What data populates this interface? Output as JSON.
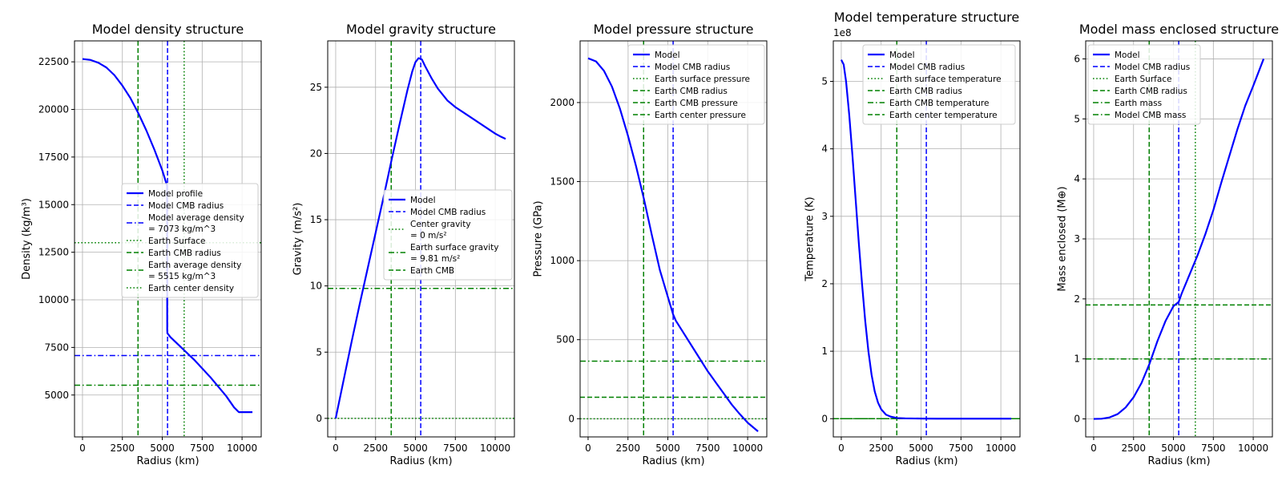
{
  "chart_data": [
    {
      "type": "line",
      "title": "Model density structure",
      "xlabel": "Radius (km)",
      "ylabel": "Density (kg/m³)",
      "xlim": [
        -500,
        11200
      ],
      "ylim": [
        2800,
        23600
      ],
      "xticks": [
        0,
        2500,
        5000,
        7500,
        10000
      ],
      "xtick_labels": [
        "0",
        "2500",
        "5000",
        "7500",
        "10000"
      ],
      "yticks": [
        5000,
        7500,
        10000,
        12500,
        15000,
        17500,
        20000,
        22500
      ],
      "ytick_labels": [
        "5000",
        "7500",
        "10000",
        "12500",
        "15000",
        "17500",
        "20000",
        "22500"
      ],
      "series": [
        {
          "name": "Model profile",
          "color": "#0000ff",
          "style": "solid",
          "x": [
            0,
            500,
            1000,
            1500,
            2000,
            2500,
            3000,
            3500,
            4000,
            4500,
            5000,
            5300,
            5310,
            5320,
            5500,
            6000,
            6500,
            7000,
            7500,
            8000,
            8500,
            9000,
            9500,
            9800,
            10000,
            10500,
            10650
          ],
          "y": [
            22650,
            22600,
            22450,
            22200,
            21800,
            21250,
            20600,
            19800,
            18900,
            17900,
            16800,
            16000,
            8400,
            8250,
            8050,
            7650,
            7250,
            6850,
            6400,
            5950,
            5450,
            4950,
            4350,
            4100,
            4100,
            4100,
            4100
          ]
        }
      ],
      "vlines": [
        {
          "name": "Model CMB radius",
          "x": 5330,
          "color": "#0000ff",
          "style": "dashed"
        },
        {
          "name": "Earth Surface",
          "x": 6371,
          "color": "#008000",
          "style": "dotted"
        },
        {
          "name": "Earth CMB radius",
          "x": 3480,
          "color": "#008000",
          "style": "dashed"
        }
      ],
      "hlines": [
        {
          "name": "Model average density = 7073 kg/m^3",
          "y": 7073,
          "color": "#0000ff",
          "style": "dashdot"
        },
        {
          "name": "Earth average density = 5515 kg/m^3",
          "y": 5515,
          "color": "#008000",
          "style": "dashdot"
        },
        {
          "name": "Earth center density",
          "y": 13000,
          "color": "#008000",
          "style": "dotted"
        }
      ],
      "legend": {
        "position": "center-right",
        "entries": [
          {
            "lines": [
              "Model profile"
            ],
            "color": "#0000ff",
            "style": "solid"
          },
          {
            "lines": [
              "Model CMB radius"
            ],
            "color": "#0000ff",
            "style": "dashed"
          },
          {
            "lines": [
              "Model average density",
              " = 7073 kg/m^3"
            ],
            "color": "#0000ff",
            "style": "dashdot"
          },
          {
            "lines": [
              "Earth Surface"
            ],
            "color": "#008000",
            "style": "dotted"
          },
          {
            "lines": [
              "Earth CMB radius"
            ],
            "color": "#008000",
            "style": "dashed"
          },
          {
            "lines": [
              "Earth average density",
              " = 5515 kg/m^3"
            ],
            "color": "#008000",
            "style": "dashdot"
          },
          {
            "lines": [
              "Earth center density"
            ],
            "color": "#008000",
            "style": "dotted"
          }
        ]
      }
    },
    {
      "type": "line",
      "title": "Model gravity structure",
      "xlabel": "Radius (km)",
      "ylabel": "Gravity (m/s²)",
      "xlim": [
        -500,
        11200
      ],
      "ylim": [
        -1.4,
        28.5
      ],
      "xticks": [
        0,
        2500,
        5000,
        7500,
        10000
      ],
      "xtick_labels": [
        "0",
        "2500",
        "5000",
        "7500",
        "10000"
      ],
      "yticks": [
        0,
        5,
        10,
        15,
        20,
        25
      ],
      "ytick_labels": [
        "0",
        "5",
        "10",
        "15",
        "20",
        "25"
      ],
      "series": [
        {
          "name": "Model",
          "color": "#0000ff",
          "style": "solid",
          "x": [
            0,
            500,
            1000,
            1500,
            2000,
            2500,
            3000,
            3500,
            4000,
            4500,
            4800,
            5000,
            5200,
            5400,
            5600,
            6000,
            6400,
            7000,
            7500,
            8000,
            8500,
            9000,
            9500,
            10000,
            10300,
            10650
          ],
          "y": [
            0,
            2.9,
            5.8,
            8.6,
            11.3,
            14,
            16.7,
            19.5,
            22.2,
            24.8,
            26.2,
            26.9,
            27.2,
            27.1,
            26.6,
            25.7,
            24.9,
            24.0,
            23.5,
            23.1,
            22.7,
            22.3,
            21.9,
            21.5,
            21.3,
            21.1
          ]
        }
      ],
      "vlines": [
        {
          "name": "Model CMB radius",
          "x": 5330,
          "color": "#0000ff",
          "style": "dashed"
        },
        {
          "name": "Earth CMB",
          "x": 3480,
          "color": "#008000",
          "style": "dashed"
        }
      ],
      "hlines": [
        {
          "name": "Center gravity = 0 m/s^2",
          "y": 0,
          "color": "#008000",
          "style": "dotted"
        },
        {
          "name": "Earth surface gravity = 9.81 m/s^2",
          "y": 9.81,
          "color": "#008000",
          "style": "dashdot"
        }
      ],
      "legend": {
        "position": "center-right",
        "entries": [
          {
            "lines": [
              "Model"
            ],
            "color": "#0000ff",
            "style": "solid"
          },
          {
            "lines": [
              "Model CMB radius"
            ],
            "color": "#0000ff",
            "style": "dashed"
          },
          {
            "lines": [
              "Center gravity",
              "= 0 m/s²"
            ],
            "color": "#008000",
            "style": "dotted"
          },
          {
            "lines": [
              "Earth surface gravity",
              "= 9.81 m/s²"
            ],
            "color": "#008000",
            "style": "dashdot"
          },
          {
            "lines": [
              "Earth CMB"
            ],
            "color": "#008000",
            "style": "dashed"
          }
        ]
      }
    },
    {
      "type": "line",
      "title": "Model pressure structure",
      "xlabel": "Radius (km)",
      "ylabel": "Pressure (GPa)",
      "xlim": [
        -500,
        11200
      ],
      "ylim": [
        -115,
        2390
      ],
      "xticks": [
        0,
        2500,
        5000,
        7500,
        10000
      ],
      "xtick_labels": [
        "0",
        "2500",
        "5000",
        "7500",
        "10000"
      ],
      "yticks": [
        0,
        500,
        1000,
        1500,
        2000
      ],
      "ytick_labels": [
        "0",
        "500",
        "1000",
        "1500",
        "2000"
      ],
      "series": [
        {
          "name": "Model",
          "color": "#0000ff",
          "style": "solid",
          "x": [
            0,
            500,
            1000,
            1500,
            2000,
            2500,
            3000,
            3500,
            4000,
            4500,
            5000,
            5330,
            5500,
            6000,
            6500,
            7000,
            7500,
            8000,
            8500,
            9000,
            9500,
            10000,
            10650
          ],
          "y": [
            2280,
            2260,
            2200,
            2100,
            1960,
            1790,
            1600,
            1390,
            1160,
            940,
            770,
            660,
            620,
            540,
            460,
            380,
            300,
            230,
            160,
            90,
            30,
            -25,
            -80
          ]
        }
      ],
      "vlines": [
        {
          "name": "Model CMB radius",
          "x": 5330,
          "color": "#0000ff",
          "style": "dashed"
        },
        {
          "name": "Earth CMB radius",
          "x": 3480,
          "color": "#008000",
          "style": "dashed"
        }
      ],
      "hlines": [
        {
          "name": "Earth surface pressure",
          "y": 0,
          "color": "#008000",
          "style": "dotted"
        },
        {
          "name": "Earth CMB pressure",
          "y": 136,
          "color": "#008000",
          "style": "dashed"
        },
        {
          "name": "Earth center pressure",
          "y": 364,
          "color": "#008000",
          "style": "dashdot"
        }
      ],
      "legend": {
        "position": "top-right",
        "entries": [
          {
            "lines": [
              "Model"
            ],
            "color": "#0000ff",
            "style": "solid"
          },
          {
            "lines": [
              "Model CMB radius"
            ],
            "color": "#0000ff",
            "style": "dashed"
          },
          {
            "lines": [
              "Earth surface pressure"
            ],
            "color": "#008000",
            "style": "dotted"
          },
          {
            "lines": [
              "Earth CMB radius"
            ],
            "color": "#008000",
            "style": "dashed"
          },
          {
            "lines": [
              "Earth CMB pressure"
            ],
            "color": "#008000",
            "style": "dashed"
          },
          {
            "lines": [
              "Earth center pressure"
            ],
            "color": "#008000",
            "style": "dashed"
          }
        ]
      }
    },
    {
      "type": "line",
      "title": "Model temperature structure",
      "xlabel": "Radius (km)",
      "ylabel": "Temperature (K)",
      "offset_text": "1e8",
      "xlim": [
        -500,
        11200
      ],
      "ylim": [
        -0.27,
        5.6
      ],
      "xticks": [
        0,
        2500,
        5000,
        7500,
        10000
      ],
      "xtick_labels": [
        "0",
        "2500",
        "5000",
        "7500",
        "10000"
      ],
      "yticks": [
        0,
        1,
        2,
        3,
        4,
        5
      ],
      "ytick_labels": [
        "0",
        "1",
        "2",
        "3",
        "4",
        "5"
      ],
      "series": [
        {
          "name": "Model",
          "color": "#0000ff",
          "style": "solid",
          "x": [
            0,
            150,
            300,
            500,
            700,
            900,
            1100,
            1300,
            1500,
            1700,
            1900,
            2100,
            2300,
            2500,
            2800,
            3100,
            3500,
            4000,
            5000,
            6000,
            8000,
            10650
          ],
          "y": [
            5.32,
            5.25,
            5.0,
            4.5,
            3.9,
            3.25,
            2.6,
            2.0,
            1.45,
            1.0,
            0.65,
            0.4,
            0.24,
            0.14,
            0.06,
            0.03,
            0.01,
            0.005,
            0.002,
            0.0,
            0.0,
            0.0
          ]
        }
      ],
      "vlines": [
        {
          "name": "Model CMB radius",
          "x": 5330,
          "color": "#0000ff",
          "style": "dashed"
        },
        {
          "name": "Earth CMB radius",
          "x": 3480,
          "color": "#008000",
          "style": "dashed"
        }
      ],
      "hlines": [
        {
          "name": "Earth surface temperature",
          "y": 2.88e-05,
          "color": "#008000",
          "style": "dotted"
        },
        {
          "name": "Earth CMB temperature",
          "y": 4e-05,
          "color": "#008000",
          "style": "dashdot"
        },
        {
          "name": "Earth center temperature",
          "y": 5.4e-05,
          "color": "#008000",
          "style": "dashed"
        }
      ],
      "legend": {
        "position": "top-right",
        "entries": [
          {
            "lines": [
              "Model"
            ],
            "color": "#0000ff",
            "style": "solid"
          },
          {
            "lines": [
              "Model CMB radius"
            ],
            "color": "#0000ff",
            "style": "dashed"
          },
          {
            "lines": [
              "Earth surface temperature"
            ],
            "color": "#008000",
            "style": "dotted"
          },
          {
            "lines": [
              "Earth CMB radius"
            ],
            "color": "#008000",
            "style": "dashed"
          },
          {
            "lines": [
              "Earth CMB temperature"
            ],
            "color": "#008000",
            "style": "dashdot"
          },
          {
            "lines": [
              "Earth center temperature"
            ],
            "color": "#008000",
            "style": "dashed"
          }
        ]
      }
    },
    {
      "type": "line",
      "title": "Model mass enclosed structure",
      "xlabel": "Radius (km)",
      "ylabel": "Mass enclosed (M⊕)",
      "xlim": [
        -500,
        11200
      ],
      "ylim": [
        -0.3,
        6.3
      ],
      "xticks": [
        0,
        2500,
        5000,
        7500,
        10000
      ],
      "xtick_labels": [
        "0",
        "2500",
        "5000",
        "7500",
        "10000"
      ],
      "yticks": [
        0,
        1,
        2,
        3,
        4,
        5,
        6
      ],
      "ytick_labels": [
        "0",
        "1",
        "2",
        "3",
        "4",
        "5",
        "6"
      ],
      "series": [
        {
          "name": "Model",
          "color": "#0000ff",
          "style": "solid",
          "x": [
            0,
            500,
            1000,
            1500,
            2000,
            2500,
            3000,
            3500,
            4000,
            4500,
            5000,
            5330,
            5500,
            6000,
            6500,
            7000,
            7500,
            8000,
            8500,
            9000,
            9500,
            10000,
            10650
          ],
          "y": [
            0,
            0.003,
            0.025,
            0.08,
            0.19,
            0.36,
            0.6,
            0.92,
            1.3,
            1.63,
            1.88,
            1.95,
            2.08,
            2.4,
            2.72,
            3.08,
            3.48,
            3.94,
            4.38,
            4.82,
            5.22,
            5.55,
            6.0
          ]
        }
      ],
      "vlines": [
        {
          "name": "Model CMB radius",
          "x": 5330,
          "color": "#0000ff",
          "style": "dashed"
        },
        {
          "name": "Earth Surface",
          "x": 6371,
          "color": "#008000",
          "style": "dotted"
        },
        {
          "name": "Earth CMB radius",
          "x": 3480,
          "color": "#008000",
          "style": "dashed"
        }
      ],
      "hlines": [
        {
          "name": "Earth mass",
          "y": 1,
          "color": "#008000",
          "style": "dashdot"
        },
        {
          "name": "Model CMB mass",
          "y": 1.9,
          "color": "#008000",
          "style": "dashed"
        }
      ],
      "legend": {
        "position": "top-left",
        "entries": [
          {
            "lines": [
              "Model"
            ],
            "color": "#0000ff",
            "style": "solid"
          },
          {
            "lines": [
              "Model CMB radius"
            ],
            "color": "#0000ff",
            "style": "dashed"
          },
          {
            "lines": [
              "Earth Surface"
            ],
            "color": "#008000",
            "style": "dotted"
          },
          {
            "lines": [
              "Earth CMB radius"
            ],
            "color": "#008000",
            "style": "dashed"
          },
          {
            "lines": [
              "Earth mass"
            ],
            "color": "#008000",
            "style": "dashdot"
          },
          {
            "lines": [
              "Model CMB mass"
            ],
            "color": "#008000",
            "style": "dashdot"
          }
        ]
      }
    }
  ]
}
